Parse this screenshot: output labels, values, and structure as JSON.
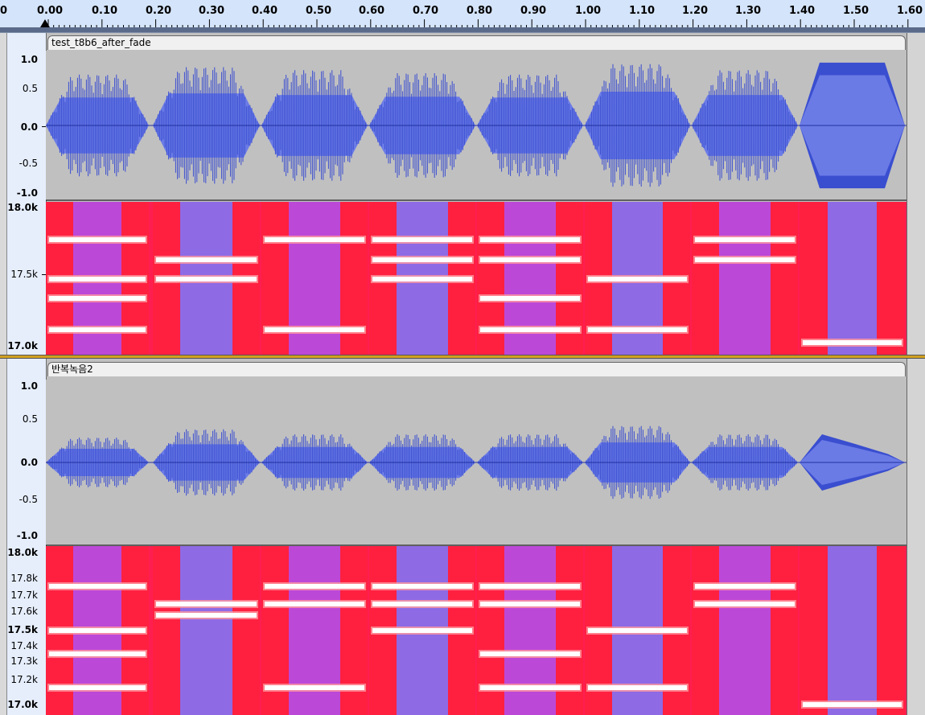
{
  "ruler": {
    "labels": [
      "0",
      "0.00",
      "0.10",
      "0.20",
      "0.30",
      "0.40",
      "0.50",
      "0.60",
      "0.70",
      "0.80",
      "0.90",
      "1.00",
      "1.10",
      "1.20",
      "1.30",
      "1.40",
      "1.50",
      "1.60"
    ]
  },
  "tracks": [
    {
      "name": "test_t8b6_after_fade",
      "wave_scale": [
        "1.0",
        "0.5",
        "0.0",
        "-0.5",
        "-1.0"
      ],
      "spec_scale": [
        "18.0k",
        "17.5k",
        "17.0k"
      ]
    },
    {
      "name": "반복녹음2",
      "wave_scale": [
        "1.0",
        "0.5",
        "0.0",
        "-0.5",
        "-1.0"
      ],
      "spec_scale": [
        "18.0k",
        "17.8k",
        "17.7k",
        "17.6k",
        "17.5k",
        "17.4k",
        "17.3k",
        "17.2k",
        "17.0k"
      ]
    }
  ],
  "colors": {
    "waveform": "#3a4ed0",
    "waveform_fill": "#6b7be6",
    "spectrogram_high": "#ff1e3c",
    "spectrogram_low": "#7a5cff",
    "tone": "#ffffff"
  }
}
